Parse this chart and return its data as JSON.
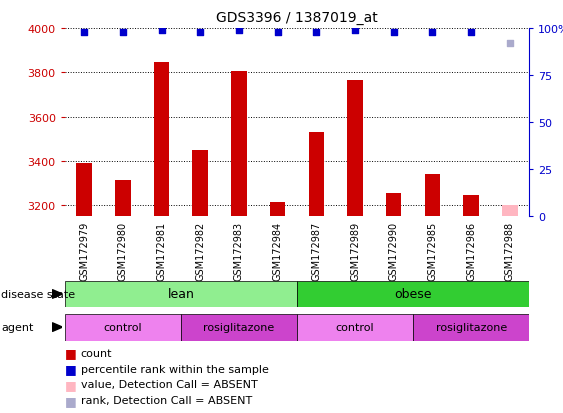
{
  "title": "GDS3396 / 1387019_at",
  "samples": [
    "GSM172979",
    "GSM172980",
    "GSM172981",
    "GSM172982",
    "GSM172983",
    "GSM172984",
    "GSM172987",
    "GSM172989",
    "GSM172990",
    "GSM172985",
    "GSM172986",
    "GSM172988"
  ],
  "count_values": [
    3390,
    3315,
    3845,
    3450,
    3805,
    3215,
    3530,
    3765,
    3255,
    3340,
    3245,
    3200
  ],
  "count_absent": [
    false,
    false,
    false,
    false,
    false,
    false,
    false,
    false,
    false,
    false,
    false,
    true
  ],
  "percentile_values": [
    98,
    98,
    99,
    98,
    99,
    98,
    98,
    99,
    98,
    98,
    98,
    92
  ],
  "percentile_absent": [
    false,
    false,
    false,
    false,
    false,
    false,
    false,
    false,
    false,
    false,
    false,
    true
  ],
  "ylim_left": [
    3150,
    4000
  ],
  "ylim_right": [
    0,
    100
  ],
  "yticks_left": [
    3200,
    3400,
    3600,
    3800,
    4000
  ],
  "yticks_right": [
    0,
    25,
    50,
    75,
    100
  ],
  "bar_width": 0.4,
  "bar_color": "#cc0000",
  "bar_absent_color": "#ffb6c1",
  "dot_color": "#0000cc",
  "dot_absent_color": "#aaaacc",
  "lean_color": "#90ee90",
  "obese_color": "#32cd32",
  "control_color": "#ee82ee",
  "rosiglitazone_color": "#cc44cc",
  "ylabel_left_color": "#cc0000",
  "ylabel_right_color": "#0000cc",
  "chart_bg": "#ffffff",
  "sample_label_bg": "#d3d3d3",
  "fig_width": 5.63,
  "fig_height": 4.14,
  "dpi": 100
}
